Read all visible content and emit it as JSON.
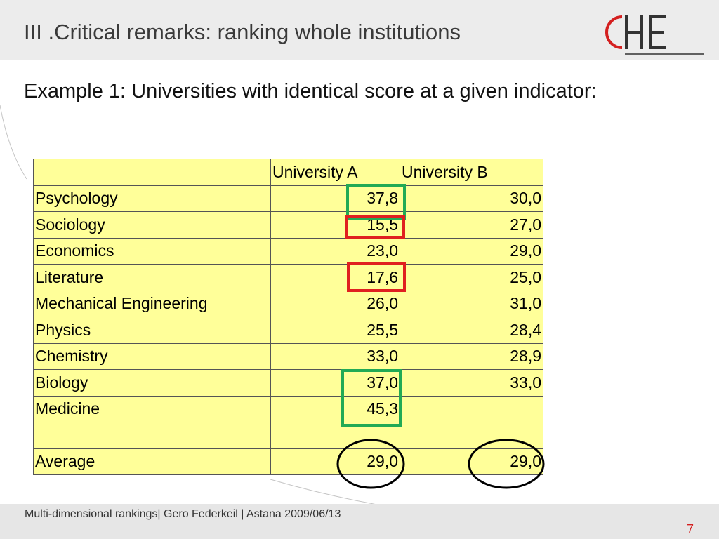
{
  "header": {
    "title": "III .Critical remarks: ranking whole institutions",
    "logo_text": "CHE",
    "logo_colors": {
      "accent": "#d42020",
      "dark": "#333333"
    }
  },
  "subtitle": "Example 1: Universities with identical score at a given indicator:",
  "table": {
    "columns": [
      "",
      "University A",
      "University B"
    ],
    "rows": [
      {
        "subject": "Psychology",
        "a": "37,8",
        "b": "30,0"
      },
      {
        "subject": "Sociology",
        "a": "15,5",
        "b": "27,0"
      },
      {
        "subject": "Economics",
        "a": "23,0",
        "b": "29,0"
      },
      {
        "subject": "Literature",
        "a": "17,6",
        "b": "25,0"
      },
      {
        "subject": "Mechanical Engineering",
        "a": "26,0",
        "b": "31,0"
      },
      {
        "subject": "Physics",
        "a": "25,5",
        "b": "28,4"
      },
      {
        "subject": "Chemistry",
        "a": "33,0",
        "b": "28,9"
      },
      {
        "subject": "Biology",
        "a": "37,0",
        "b": "33,0"
      },
      {
        "subject": "Medicine",
        "a": "45,3",
        "b": ""
      },
      {
        "subject": "",
        "a": "",
        "b": ""
      },
      {
        "subject": "Average",
        "a": "29,0",
        "b": "29,0"
      }
    ]
  },
  "highlight_colors": {
    "green": "#22aa55",
    "red": "#e02020",
    "black": "#000000"
  },
  "footer": {
    "text": "Multi-dimensional rankings| Gero Federkeil | Astana 2009/06/13",
    "page_number": "7"
  }
}
